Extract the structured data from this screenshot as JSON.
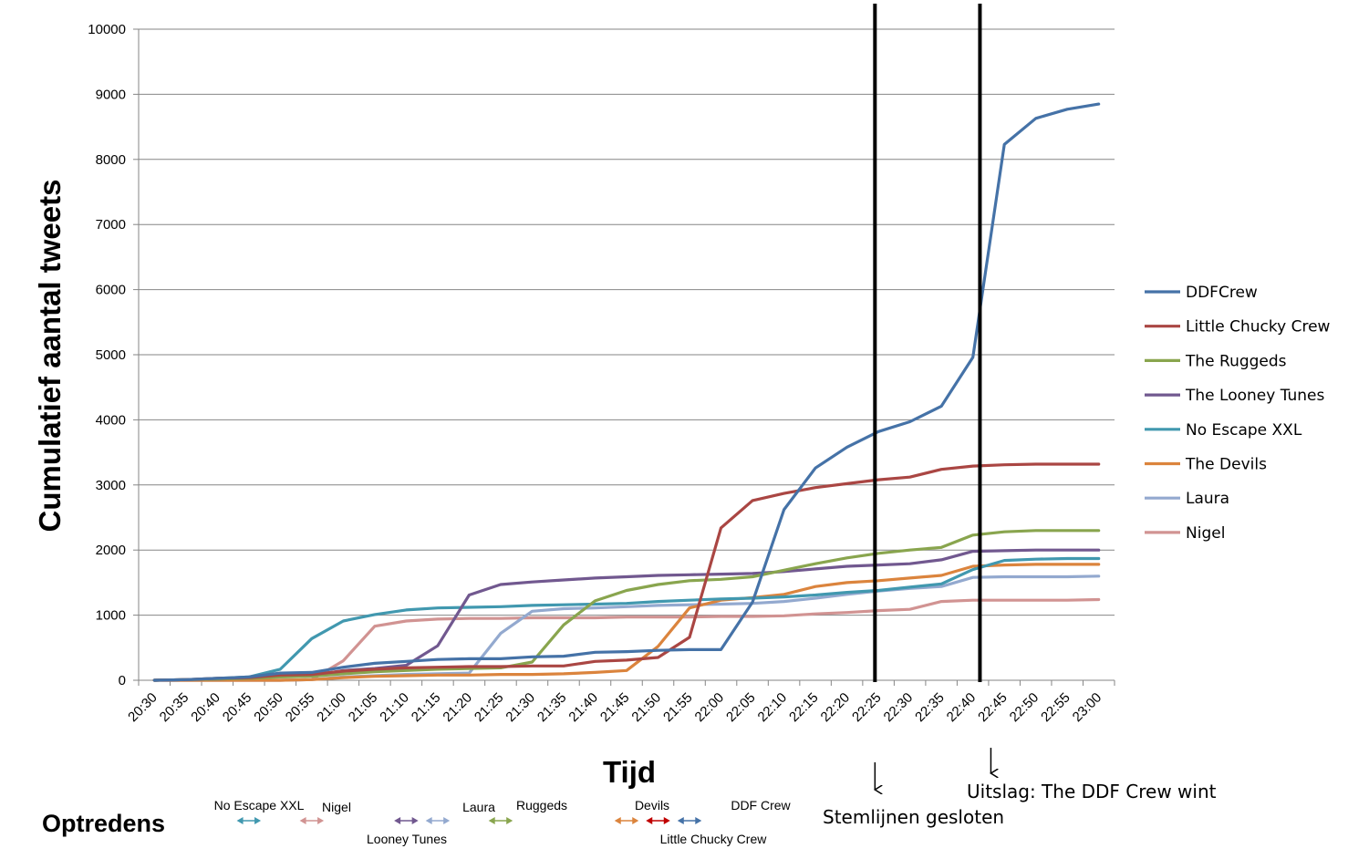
{
  "chart_data": {
    "type": "line",
    "xlabel": "Tijd",
    "ylabel": "Cumulatief aantal tweets",
    "ylim": [
      0,
      10000
    ],
    "y_ticks": [
      0,
      1000,
      2000,
      3000,
      4000,
      5000,
      6000,
      7000,
      8000,
      9000,
      10000
    ],
    "grid": "horizontal",
    "legend_position": "right",
    "x": [
      "20:30",
      "20:35",
      "20:40",
      "20:45",
      "20:50",
      "20:55",
      "21:00",
      "21:05",
      "21:10",
      "21:15",
      "21:20",
      "21:25",
      "21:30",
      "21:35",
      "21:40",
      "21:45",
      "21:50",
      "21:55",
      "22:00",
      "22:05",
      "22:10",
      "22:15",
      "22:20",
      "22:25",
      "22:30",
      "22:35",
      "22:40",
      "22:45",
      "22:50",
      "22:55",
      "23:00"
    ],
    "series": [
      {
        "name": "DDFCrew",
        "color": "#4572a7",
        "values": [
          0,
          10,
          30,
          50,
          110,
          120,
          200,
          260,
          290,
          320,
          330,
          330,
          360,
          370,
          430,
          440,
          460,
          470,
          470,
          1200,
          2620,
          3260,
          3580,
          3820,
          3970,
          4210,
          4960,
          8230,
          8630,
          8770,
          8850
        ]
      },
      {
        "name": "Little Chucky Crew",
        "color": "#aa4643",
        "values": [
          0,
          10,
          30,
          40,
          80,
          90,
          140,
          170,
          190,
          200,
          210,
          210,
          220,
          220,
          290,
          310,
          350,
          660,
          2340,
          2760,
          2870,
          2960,
          3020,
          3080,
          3120,
          3240,
          3290,
          3310,
          3320,
          3320,
          3320
        ]
      },
      {
        "name": "The Ruggeds",
        "color": "#89a54e",
        "values": [
          0,
          10,
          20,
          30,
          50,
          60,
          100,
          130,
          150,
          170,
          180,
          190,
          280,
          850,
          1220,
          1380,
          1470,
          1530,
          1550,
          1590,
          1690,
          1790,
          1880,
          1950,
          2000,
          2040,
          2230,
          2280,
          2300,
          2300,
          2300
        ]
      },
      {
        "name": "The Looney Tunes",
        "color": "#71588f",
        "values": [
          0,
          10,
          20,
          30,
          60,
          70,
          150,
          180,
          230,
          530,
          1310,
          1470,
          1510,
          1540,
          1570,
          1590,
          1610,
          1620,
          1630,
          1640,
          1670,
          1710,
          1750,
          1770,
          1790,
          1850,
          1980,
          1990,
          2000,
          2000,
          2000
        ]
      },
      {
        "name": "No Escape XXL",
        "color": "#4198af",
        "values": [
          0,
          10,
          30,
          50,
          170,
          640,
          910,
          1010,
          1080,
          1110,
          1120,
          1130,
          1150,
          1160,
          1170,
          1180,
          1210,
          1230,
          1250,
          1260,
          1280,
          1310,
          1350,
          1380,
          1430,
          1480,
          1700,
          1840,
          1860,
          1870,
          1870
        ]
      },
      {
        "name": "The Devils",
        "color": "#db843d",
        "values": [
          0,
          0,
          0,
          0,
          0,
          10,
          40,
          60,
          70,
          80,
          80,
          90,
          90,
          100,
          120,
          150,
          520,
          1110,
          1230,
          1270,
          1320,
          1440,
          1500,
          1530,
          1570,
          1610,
          1750,
          1770,
          1780,
          1780,
          1780
        ]
      },
      {
        "name": "Laura",
        "color": "#93a9cf",
        "values": [
          0,
          0,
          0,
          0,
          0,
          10,
          50,
          70,
          90,
          100,
          110,
          720,
          1060,
          1100,
          1110,
          1130,
          1150,
          1160,
          1170,
          1180,
          1210,
          1260,
          1320,
          1370,
          1410,
          1440,
          1580,
          1590,
          1590,
          1590,
          1600
        ]
      },
      {
        "name": "Nigel",
        "color": "#d19392",
        "values": [
          0,
          0,
          0,
          0,
          0,
          10,
          300,
          830,
          910,
          940,
          950,
          950,
          960,
          960,
          960,
          970,
          970,
          970,
          980,
          980,
          990,
          1020,
          1040,
          1070,
          1090,
          1210,
          1230,
          1230,
          1230,
          1230,
          1240
        ]
      }
    ],
    "vertical_markers": [
      {
        "x": "22:25",
        "label": "Stemlijnen gesloten"
      },
      {
        "x": "22:40",
        "label": "Uitslag: The DDF Crew wint"
      }
    ],
    "performances": {
      "title": "Optredens",
      "items": [
        {
          "label": "No Escape XXL",
          "color": "#4198af",
          "start": "20:45",
          "end": "20:50"
        },
        {
          "label": "Nigel",
          "color": "#d19392",
          "start": "20:55",
          "end": "21:00"
        },
        {
          "label": "Looney Tunes",
          "color": "#71588f",
          "start": "21:10",
          "end": "21:15"
        },
        {
          "label": "Laura",
          "color": "#93a9cf",
          "start": "21:15",
          "end": "21:20"
        },
        {
          "label": "Ruggeds",
          "color": "#89a54e",
          "start": "21:25",
          "end": "21:30"
        },
        {
          "label": "Devils",
          "color": "#db843d",
          "start": "21:45",
          "end": "21:50"
        },
        {
          "label": "Little Chucky Crew",
          "color": "#c00000",
          "start": "21:50",
          "end": "21:55"
        },
        {
          "label": "DDF Crew",
          "color": "#4572a7",
          "start": "21:55",
          "end": "22:00"
        }
      ]
    }
  }
}
